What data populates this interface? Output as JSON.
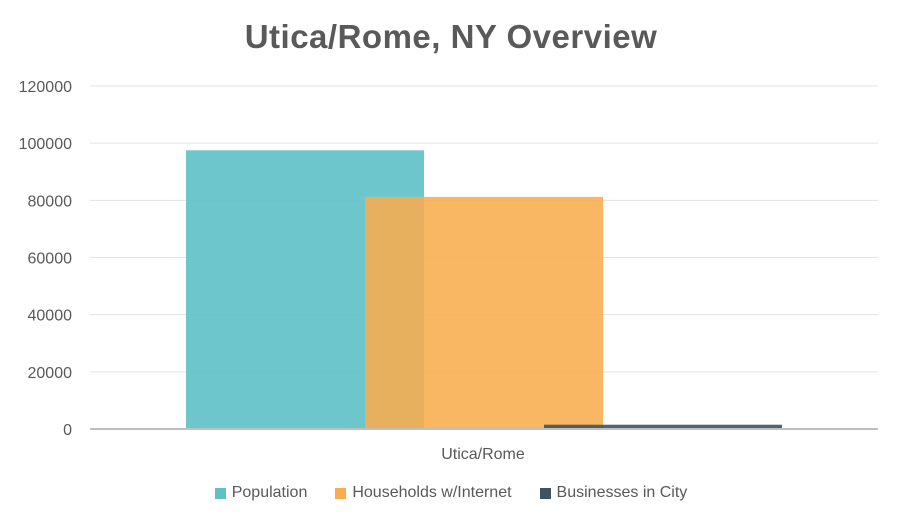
{
  "chart_data": {
    "type": "bar",
    "title": "Utica/Rome, NY Overview",
    "categories": [
      "Utica/Rome"
    ],
    "series": [
      {
        "name": "Population",
        "values": [
          97500
        ],
        "color": "#5ec0c8"
      },
      {
        "name": "Households w/Internet",
        "values": [
          81200
        ],
        "color": "#f8ad4f"
      },
      {
        "name": "Businesses in City",
        "values": [
          1500
        ],
        "color": "#3f5261"
      }
    ],
    "ylim": [
      0,
      120000
    ],
    "yticks": [
      "0",
      "20000",
      "40000",
      "60000",
      "80000",
      "100000",
      "120000"
    ],
    "grid": true,
    "legend": "bottom"
  }
}
